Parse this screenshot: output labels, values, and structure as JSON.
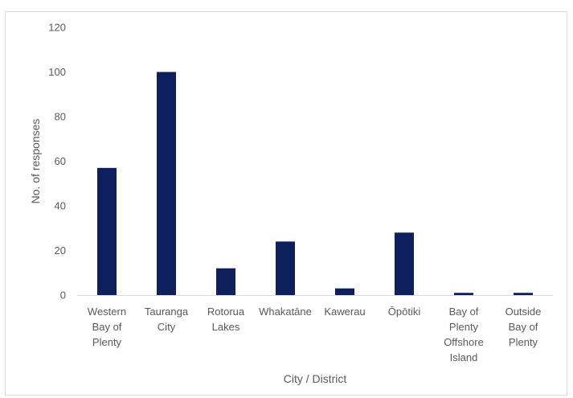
{
  "chart_data": {
    "type": "bar",
    "title": "",
    "xlabel": "City / District",
    "ylabel": "No. of responses",
    "ylim": [
      0,
      120
    ],
    "yticks": [
      0,
      20,
      40,
      60,
      80,
      100,
      120
    ],
    "grid": false,
    "bar_color": "#0d1f5c",
    "categories": [
      [
        "Western",
        "Bay of",
        "Plenty"
      ],
      [
        "Tauranga",
        "City"
      ],
      [
        "Rotorua",
        "Lakes"
      ],
      [
        "Whakatāne"
      ],
      [
        "Kawerau"
      ],
      [
        "Ōpōtiki"
      ],
      [
        "Bay of",
        "Plenty",
        "Offshore",
        "Island"
      ],
      [
        "Outside",
        "Bay of",
        "Plenty"
      ]
    ],
    "values": [
      57,
      100,
      12,
      24,
      3,
      28,
      1,
      1
    ]
  }
}
